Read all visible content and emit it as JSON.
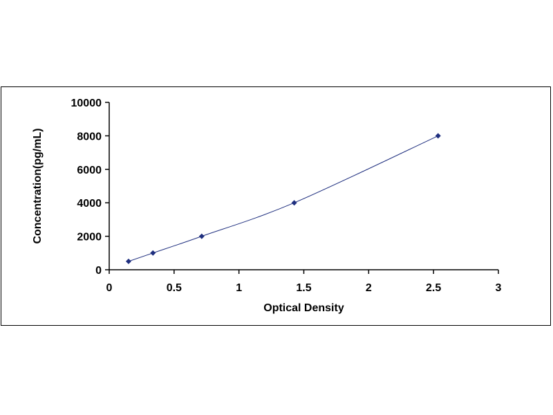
{
  "chart_data": {
    "type": "scatter",
    "title": "",
    "xlabel": "Optical Density",
    "ylabel": "Concentration(pg/mL)",
    "xlim": [
      0,
      3
    ],
    "ylim": [
      0,
      10000
    ],
    "x_ticks": [
      "0",
      "0.5",
      "1",
      "1.5",
      "2",
      "2.5",
      "3"
    ],
    "y_ticks": [
      "0",
      "2000",
      "4000",
      "6000",
      "8000",
      "10000"
    ],
    "grid": false,
    "legend": "none",
    "trendline": "smooth curve through points",
    "series": [
      {
        "x": [
          0.149,
          0.337,
          0.713,
          1.426,
          2.535
        ],
        "y": [
          500,
          1000,
          2000,
          4000,
          8000
        ],
        "color": "#1F2F7F",
        "marker": "diamond"
      }
    ]
  }
}
